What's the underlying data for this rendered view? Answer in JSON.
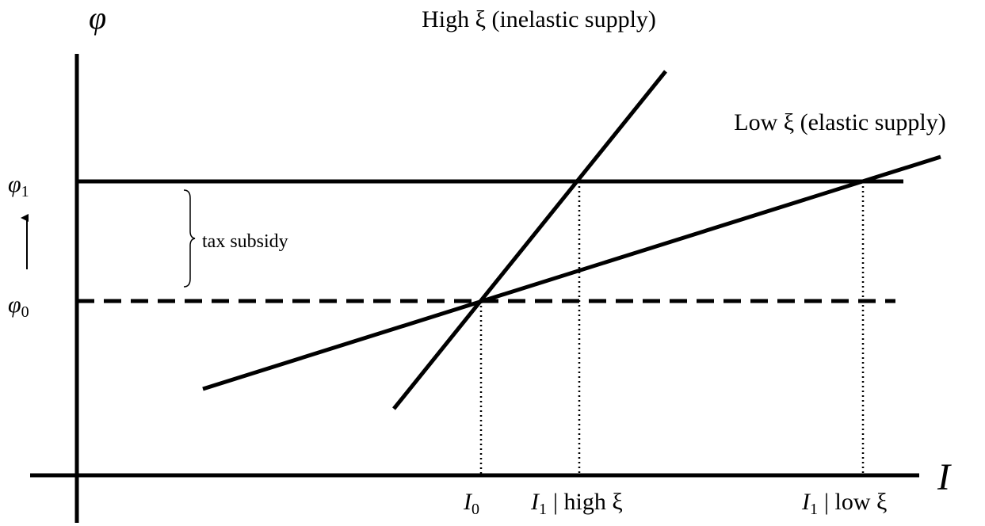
{
  "axes": {
    "y_label": "φ",
    "x_label": "I"
  },
  "curves": {
    "high": "High ξ (inelastic supply)",
    "low": "Low ξ (elastic supply)"
  },
  "y_levels": [
    {
      "symbol": "φ",
      "subscript": "1"
    },
    {
      "symbol": "φ",
      "subscript": "0"
    }
  ],
  "annotation": "tax subsidy",
  "x_marks": [
    {
      "symbol": "I",
      "subscript": "0"
    },
    {
      "symbol": "I",
      "subscript": "1",
      "suffix": "| high ξ"
    },
    {
      "symbol": "I",
      "subscript": "1",
      "suffix": "| low ξ"
    }
  ]
}
